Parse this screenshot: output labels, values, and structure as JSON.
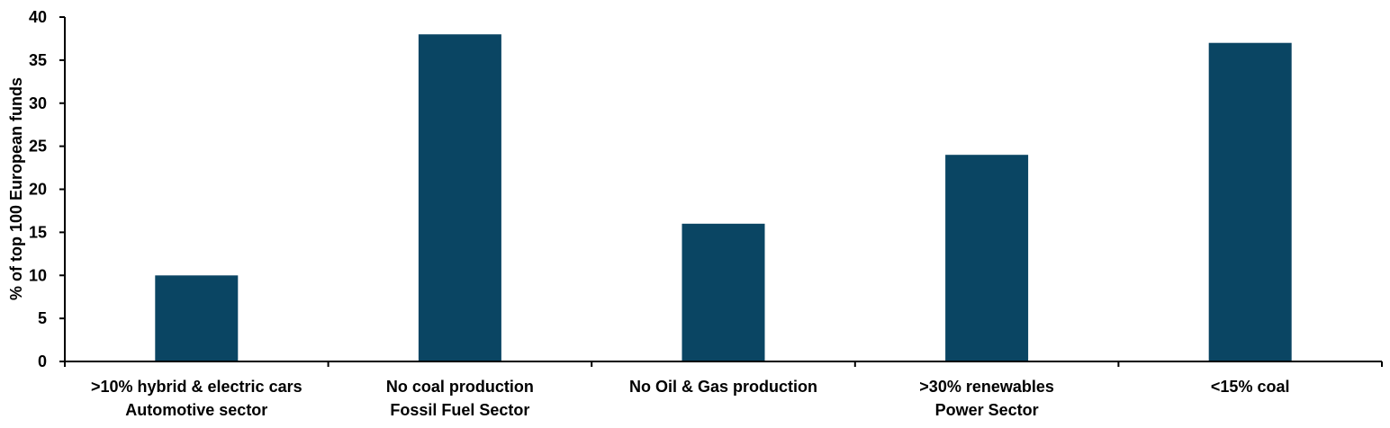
{
  "chart_data": {
    "type": "bar",
    "title": "",
    "xlabel": "",
    "ylabel": "% of top 100 European funds",
    "ylim": [
      0,
      40
    ],
    "yticks": [
      0,
      5,
      10,
      15,
      20,
      25,
      30,
      35,
      40
    ],
    "grid": false,
    "categories": [
      ">10% hybrid & electric cars\nAutomotive sector",
      "No coal production\nFossil Fuel Sector",
      "No Oil & Gas production",
      ">30% renewables\nPower Sector",
      "<15% coal"
    ],
    "values": [
      10,
      38,
      16,
      24,
      37
    ],
    "bar_color": "#0a4563",
    "axis_color": "#000000"
  }
}
